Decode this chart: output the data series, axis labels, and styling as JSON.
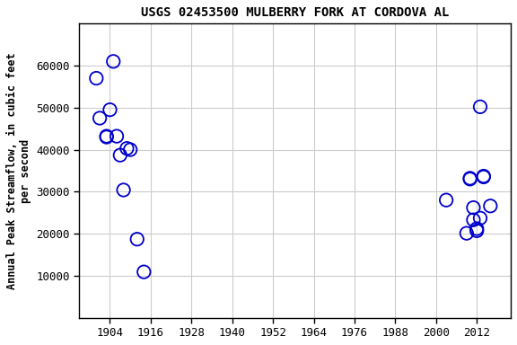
{
  "title": "USGS 02453500 MULBERRY FORK AT CORDOVA AL",
  "ylabel": "Annual Peak Streamflow, in cubic feet\nper second",
  "points": [
    [
      1900,
      57000
    ],
    [
      1901,
      47500
    ],
    [
      1903,
      43000
    ],
    [
      1903,
      43200
    ],
    [
      1904,
      49500
    ],
    [
      1905,
      61000
    ],
    [
      1906,
      43200
    ],
    [
      1907,
      38700
    ],
    [
      1908,
      30400
    ],
    [
      1909,
      40300
    ],
    [
      1910,
      40000
    ],
    [
      1912,
      18700
    ],
    [
      1914,
      10900
    ],
    [
      2003,
      28000
    ],
    [
      2009,
      20100
    ],
    [
      2010,
      33000
    ],
    [
      2010,
      33200
    ],
    [
      2011,
      26200
    ],
    [
      2011,
      23300
    ],
    [
      2012,
      20700
    ],
    [
      2012,
      21200
    ],
    [
      2013,
      23700
    ],
    [
      2013,
      50200
    ],
    [
      2014,
      33500
    ],
    [
      2014,
      33700
    ],
    [
      2016,
      26600
    ]
  ],
  "marker_color": "#0000cc",
  "marker_facecolor": "none",
  "marker_size": 6,
  "marker_style": "o",
  "grid_color": "#cccccc",
  "xlim": [
    1895,
    2022
  ],
  "ylim": [
    0,
    70000
  ],
  "xticks": [
    1904,
    1916,
    1928,
    1940,
    1952,
    1964,
    1976,
    1988,
    2000,
    2012
  ],
  "ytick_values": [
    10000,
    20000,
    30000,
    40000,
    50000,
    60000
  ],
  "ytick_labels": [
    "10000",
    "20000",
    "30000",
    "40000",
    "50000",
    "60000"
  ],
  "title_fontsize": 10,
  "label_fontsize": 8.5,
  "tick_fontsize": 9,
  "font_family": "monospace",
  "fig_width": 5.76,
  "fig_height": 3.84,
  "dpi": 100
}
